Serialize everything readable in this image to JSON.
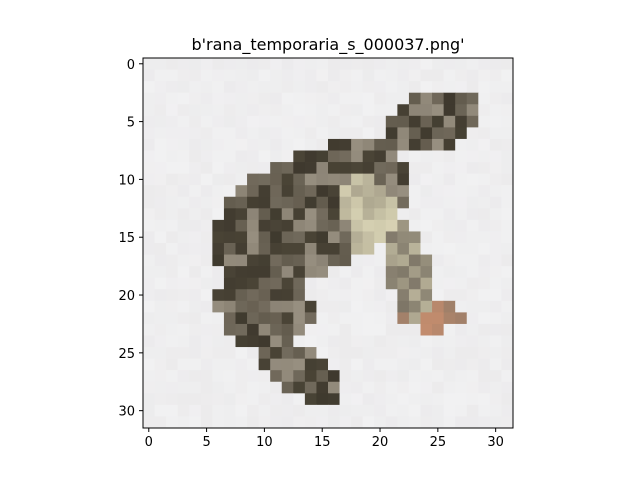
{
  "title": "b'rana_temporaria_s_000037.png'",
  "image": {
    "subject": "frog",
    "pixel_grid": [
      32,
      32
    ],
    "background_color": "#f1f1f2",
    "dark_color": "#4b4537",
    "mid_color": "#7a7264",
    "light_color": "#d8d3b4",
    "rust_color": "#c58d6e"
  },
  "axes": {
    "xlim": [
      -0.5,
      31.5
    ],
    "ylim": [
      31.5,
      -0.5
    ],
    "x_ticks": [
      0,
      5,
      10,
      15,
      20,
      25,
      30
    ],
    "x_tick_labels": [
      "0",
      "5",
      "10",
      "15",
      "20",
      "25",
      "30"
    ],
    "y_ticks": [
      0,
      5,
      10,
      15,
      20,
      25,
      30
    ],
    "y_tick_labels": [
      "0",
      "5",
      "10",
      "15",
      "20",
      "25",
      "30"
    ]
  }
}
